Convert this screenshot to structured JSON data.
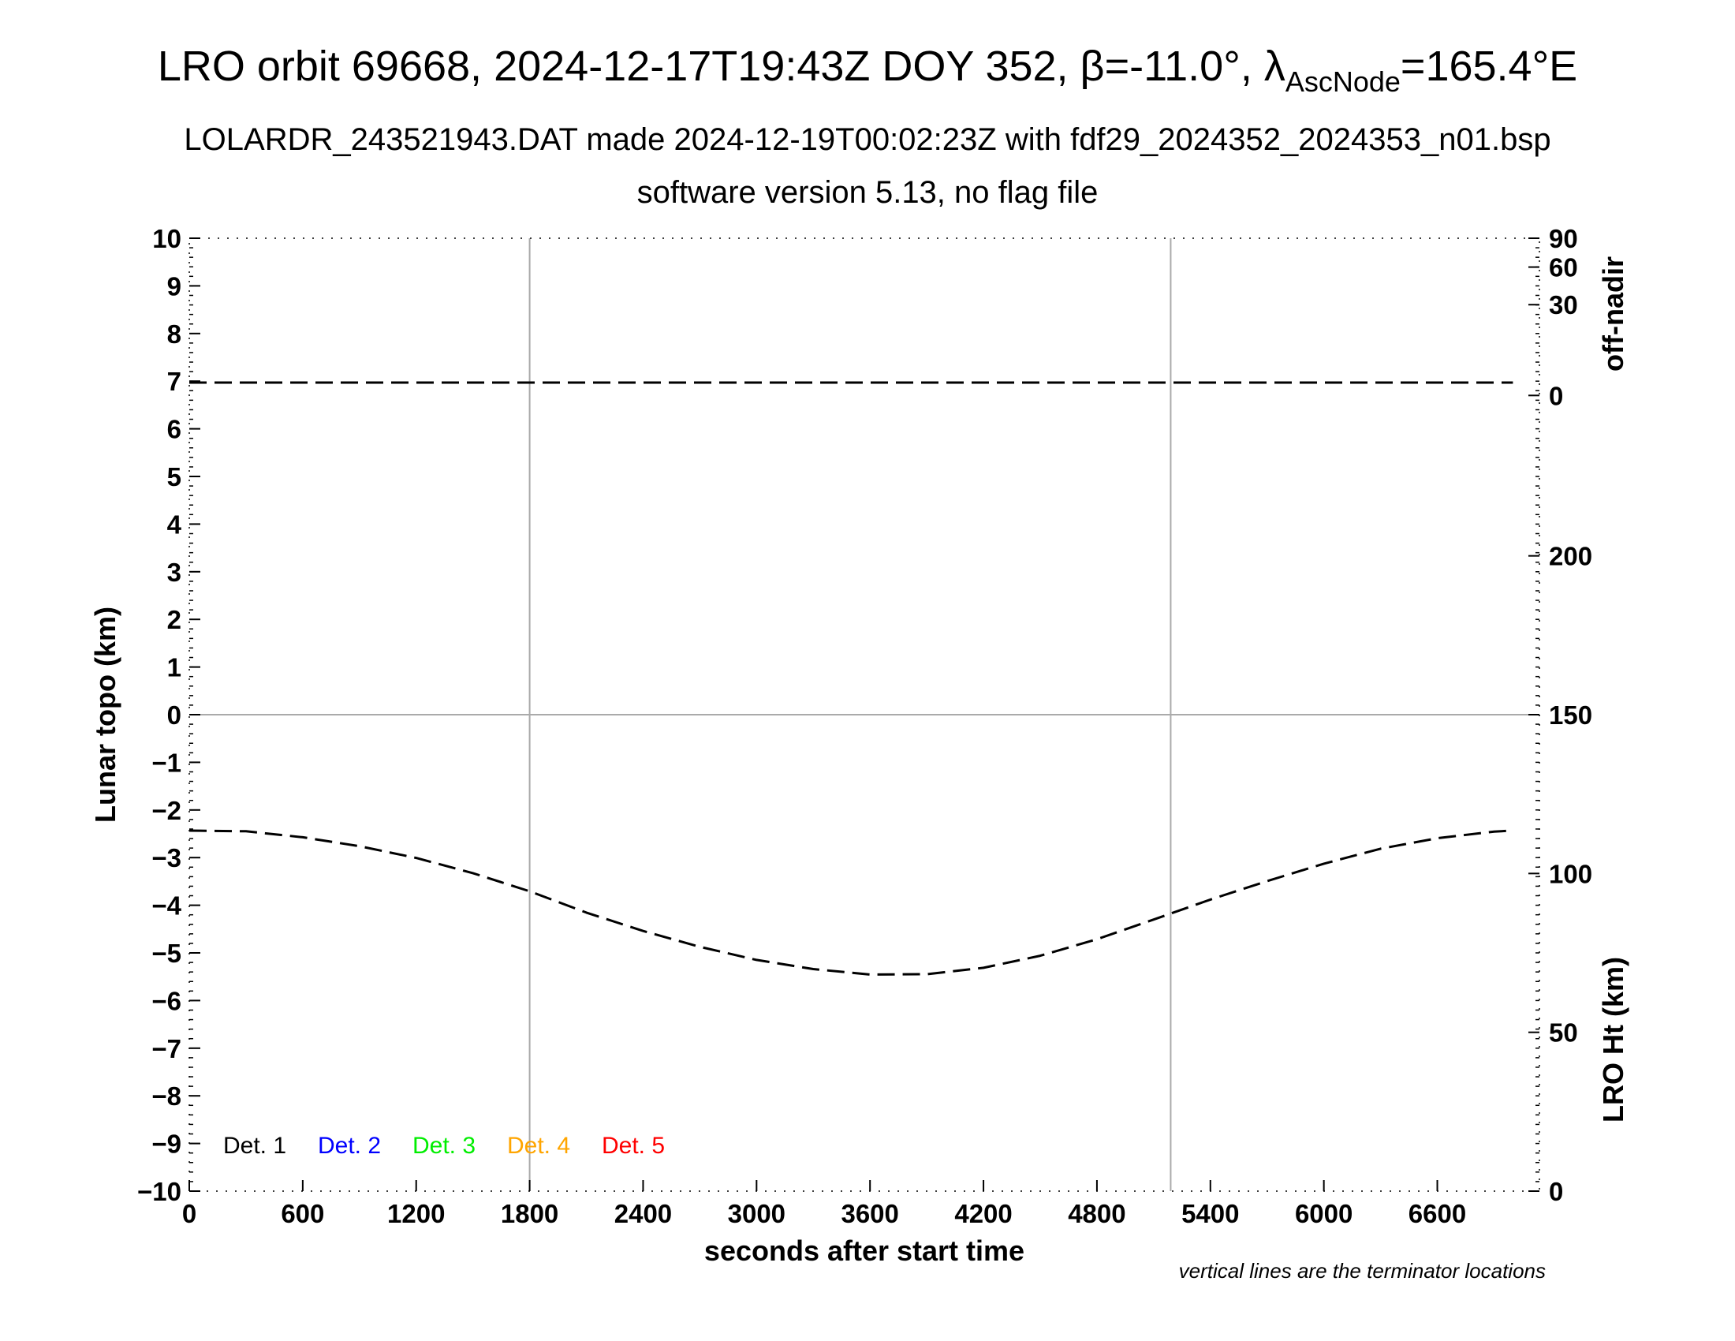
{
  "chart_data": {
    "type": "line",
    "title_parts": {
      "pre": "LRO orbit 69668, 2024-12-17T19:43Z DOY 352, ",
      "beta_sym": "β",
      "beta_val": "=-11.0°, ",
      "lambda_sym": "λ",
      "lambda_sub": "AscNode",
      "lambda_val": "=165.4°E"
    },
    "subtitle": "LOLARDR_243521943.DAT made 2024-12-19T00:02:23Z with fdf29_2024352_2024353_n01.bsp",
    "subtitle2": "software version 5.13, no flag file",
    "xlabel": "seconds after start time",
    "ylabel": "Lunar topo (km)",
    "y2label_top": "off-nadir",
    "y2label_bottom": "LRO Ht (km)",
    "note": "vertical lines are the terminator locations",
    "xlim": [
      0,
      7140
    ],
    "ylim": [
      -10,
      10
    ],
    "x_ticks": [
      "0",
      "600",
      "1200",
      "1800",
      "2400",
      "3000",
      "3600",
      "4200",
      "4800",
      "5400",
      "6000",
      "6600"
    ],
    "y_ticks": [
      "10",
      "9",
      "8",
      "7",
      "6",
      "5",
      "4",
      "3",
      "2",
      "1",
      "0",
      "−1",
      "−2",
      "−3",
      "−4",
      "−5",
      "−6",
      "−7",
      "−8",
      "−9",
      "−10"
    ],
    "offnadir_ticks": [
      "90",
      "60",
      "30",
      "0"
    ],
    "ht_ticks": [
      "200",
      "150",
      "100",
      "50",
      "0"
    ],
    "ht_range": [
      0,
      300
    ],
    "terminators": [
      1800,
      5190
    ],
    "legend": [
      {
        "label": "Det. 1",
        "color": "#000000"
      },
      {
        "label": "Det. 2",
        "color": "#0000ff"
      },
      {
        "label": "Det. 3",
        "color": "#00ee00"
      },
      {
        "label": "Det. 4",
        "color": "#ffa500"
      },
      {
        "label": "Det. 5",
        "color": "#ff0000"
      }
    ],
    "series": [
      {
        "name": "off-nadir",
        "axis": "off-nadir",
        "x": [
          0,
          1000,
          2000,
          3000,
          4000,
          5000,
          6000,
          7000
        ],
        "values": [
          0.6,
          0.6,
          0.6,
          0.6,
          0.6,
          0.6,
          0.6,
          0.6
        ]
      },
      {
        "name": "LRO Ht",
        "axis": "LRO Ht (km)",
        "x": [
          0,
          300,
          600,
          900,
          1200,
          1500,
          1800,
          2100,
          2400,
          2700,
          3000,
          3300,
          3600,
          3900,
          4200,
          4500,
          4800,
          5100,
          5400,
          5700,
          6000,
          6300,
          6600,
          6900,
          7000
        ],
        "values": [
          113.5,
          113.3,
          111.4,
          108.6,
          104.9,
          100.1,
          94.4,
          87.7,
          81.9,
          76.9,
          72.8,
          69.9,
          68.2,
          68.3,
          70.3,
          74.1,
          79.3,
          85.5,
          91.8,
          97.6,
          103.1,
          107.8,
          111.1,
          113.2,
          113.5
        ]
      }
    ]
  }
}
